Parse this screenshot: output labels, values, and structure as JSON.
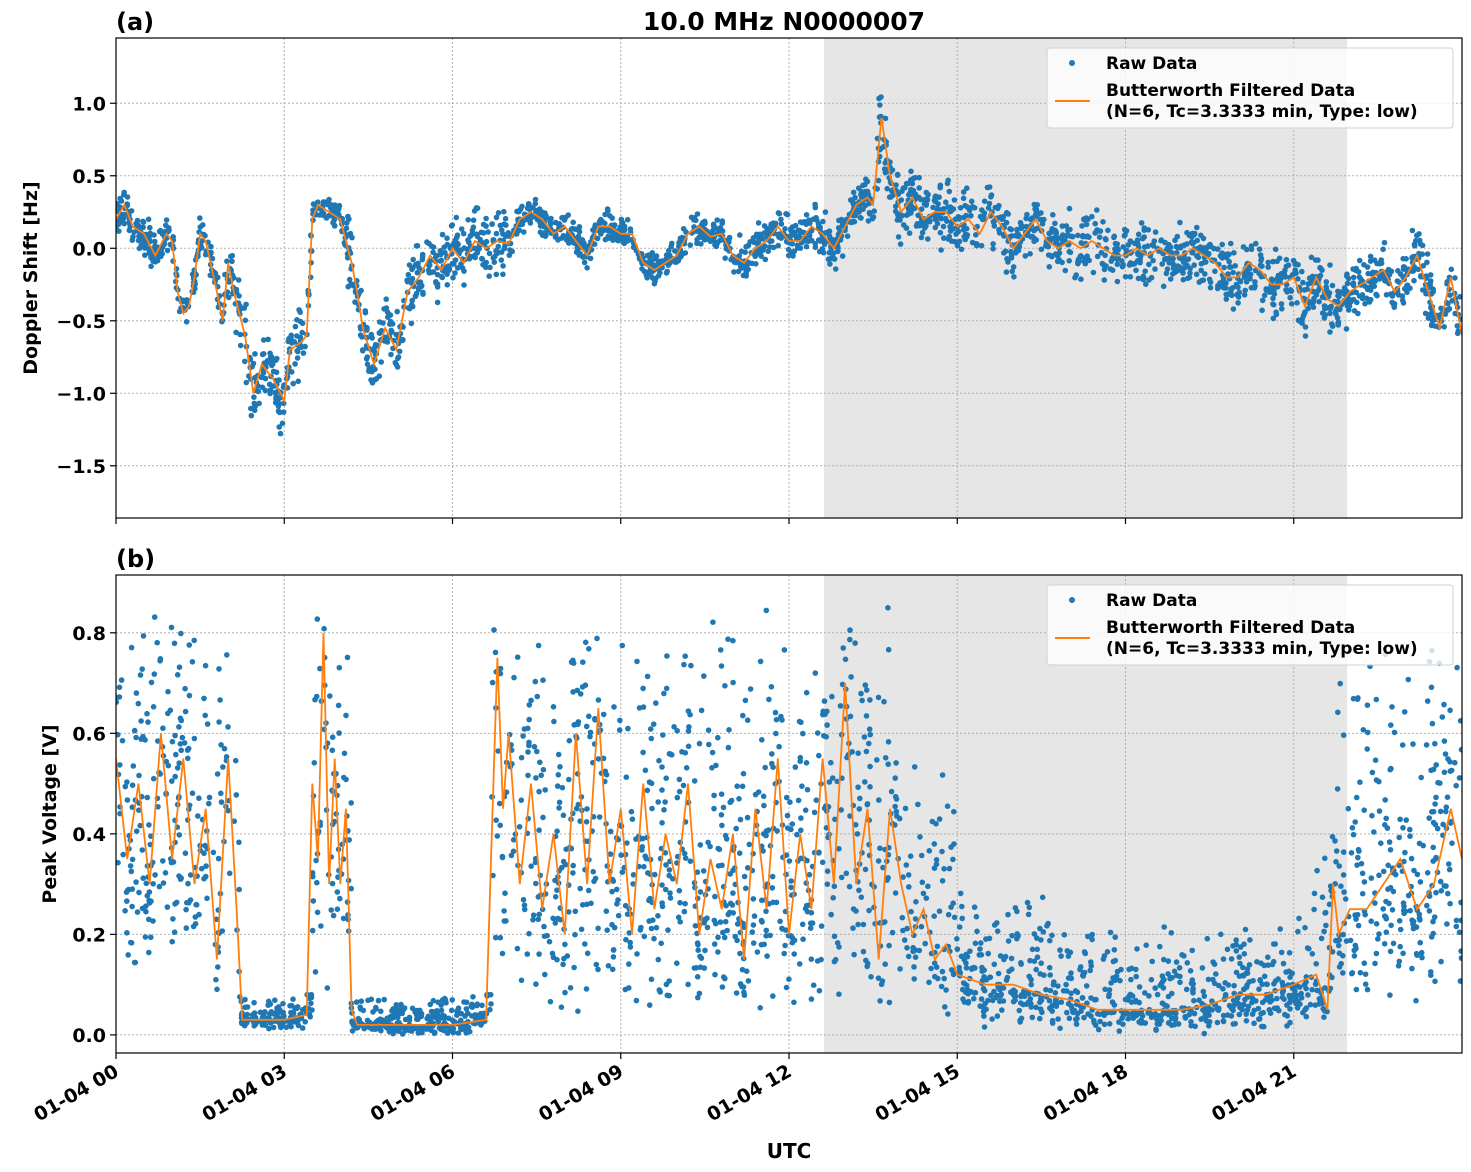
{
  "figure": {
    "title": "10.0 MHz N0000007",
    "xlabel": "UTC",
    "x_tick_labels": [
      "01-04 00",
      "01-04 03",
      "01-04 06",
      "01-04 09",
      "01-04 12",
      "01-04 15",
      "01-04 18",
      "01-04 21"
    ]
  },
  "chart_data": [
    {
      "type": "scatter+line",
      "panel_label": "(a)",
      "ylabel": "Doppler Shift [Hz]",
      "x_unit": "hours UTC on 01-04",
      "xlim": [
        0,
        24
      ],
      "ylim": [
        -1.86,
        1.45
      ],
      "y_ticks": [
        1.0,
        0.5,
        0.0,
        -0.5,
        -1.0,
        -1.5
      ],
      "y_tick_labels": [
        "1.0",
        "0.5",
        "0.0",
        "−0.5",
        "−1.0",
        "−1.5"
      ],
      "grid": true,
      "shaded_interval": [
        12.625,
        21.95
      ],
      "legend": {
        "placement": "top-right",
        "entries": [
          "Raw Data",
          "Butterworth Filtered Data",
          "(N=6, Tc=3.3333 min, Type: low)"
        ]
      },
      "colors": {
        "raw": "#1f77b4",
        "filtered": "#ff7f0e",
        "shade": "#e6e6e6"
      },
      "filtered": {
        "x": [
          0,
          0.15,
          0.3,
          0.5,
          0.7,
          0.9,
          1.0,
          1.1,
          1.2,
          1.3,
          1.4,
          1.5,
          1.6,
          1.8,
          1.9,
          2.0,
          2.1,
          2.3,
          2.45,
          2.6,
          2.8,
          3.0,
          3.1,
          3.3,
          3.4,
          3.5,
          3.6,
          3.8,
          4.0,
          4.2,
          4.3,
          4.4,
          4.6,
          4.8,
          5.0,
          5.2,
          5.4,
          5.6,
          5.8,
          6.0,
          6.2,
          6.4,
          6.6,
          6.8,
          7.0,
          7.2,
          7.4,
          7.6,
          7.8,
          8.0,
          8.2,
          8.4,
          8.6,
          8.8,
          9.0,
          9.2,
          9.4,
          9.6,
          9.8,
          10.0,
          10.2,
          10.4,
          10.6,
          10.8,
          11.0,
          11.2,
          11.4,
          11.6,
          11.8,
          12.0,
          12.2,
          12.4,
          12.6,
          12.8,
          13.0,
          13.2,
          13.4,
          13.5,
          13.65,
          13.8,
          14.0,
          14.2,
          14.4,
          14.6,
          14.8,
          15.0,
          15.2,
          15.4,
          15.6,
          15.8,
          16.0,
          16.2,
          16.4,
          16.6,
          16.8,
          17.0,
          17.2,
          17.4,
          17.6,
          17.8,
          18.0,
          18.2,
          18.4,
          18.6,
          18.8,
          19.0,
          19.2,
          19.4,
          19.6,
          19.8,
          20.0,
          20.2,
          20.4,
          20.6,
          20.8,
          21.0,
          21.2,
          21.4,
          21.6,
          21.8,
          22.0,
          22.2,
          22.4,
          22.6,
          22.8,
          23.0,
          23.2,
          23.4,
          23.6,
          23.8,
          24.0
        ],
        "y": [
          0.2,
          0.3,
          0.15,
          0.1,
          -0.05,
          0.1,
          0.05,
          -0.3,
          -0.45,
          -0.4,
          -0.2,
          0.1,
          0.05,
          -0.3,
          -0.5,
          -0.1,
          -0.3,
          -0.6,
          -1.0,
          -0.8,
          -0.9,
          -1.05,
          -0.7,
          -0.65,
          -0.6,
          0.2,
          0.3,
          0.25,
          0.2,
          -0.1,
          -0.3,
          -0.55,
          -0.8,
          -0.55,
          -0.7,
          -0.3,
          -0.2,
          -0.05,
          -0.15,
          0.0,
          -0.1,
          0.05,
          0.0,
          0.05,
          0.03,
          0.2,
          0.25,
          0.2,
          0.1,
          0.15,
          0.05,
          -0.05,
          0.15,
          0.15,
          0.1,
          0.1,
          -0.1,
          -0.15,
          -0.1,
          -0.05,
          0.1,
          0.15,
          0.08,
          0.1,
          -0.05,
          -0.1,
          0.0,
          0.05,
          0.15,
          0.05,
          0.05,
          0.15,
          0.1,
          0.0,
          0.15,
          0.3,
          0.35,
          0.3,
          0.9,
          0.5,
          0.25,
          0.35,
          0.2,
          0.25,
          0.25,
          0.15,
          0.2,
          0.1,
          0.25,
          0.15,
          0.0,
          0.1,
          0.2,
          0.05,
          0.0,
          0.05,
          0.0,
          0.05,
          0.0,
          -0.05,
          -0.05,
          0.0,
          -0.05,
          0.0,
          -0.05,
          -0.05,
          0.0,
          -0.05,
          -0.1,
          -0.2,
          -0.2,
          -0.1,
          -0.15,
          -0.25,
          -0.25,
          -0.2,
          -0.4,
          -0.2,
          -0.35,
          -0.4,
          -0.3,
          -0.25,
          -0.2,
          -0.15,
          -0.3,
          -0.2,
          -0.05,
          -0.3,
          -0.55,
          -0.2,
          -0.6
        ]
      },
      "raw_spread": [
        {
          "from": 0,
          "to": 2,
          "halfwidth": 0.2
        },
        {
          "from": 2,
          "to": 3.5,
          "halfwidth": 0.35
        },
        {
          "from": 3.5,
          "to": 4.1,
          "halfwidth": 0.12
        },
        {
          "from": 4.1,
          "to": 5.2,
          "halfwidth": 0.35
        },
        {
          "from": 5.2,
          "to": 7,
          "halfwidth": 0.32
        },
        {
          "from": 7,
          "to": 11,
          "halfwidth": 0.15
        },
        {
          "from": 11,
          "to": 13.5,
          "halfwidth": 0.2
        },
        {
          "from": 13.5,
          "to": 14,
          "halfwidth": 0.4
        },
        {
          "from": 14,
          "to": 16,
          "halfwidth": 0.3
        },
        {
          "from": 16,
          "to": 24,
          "halfwidth": 0.3
        }
      ]
    },
    {
      "type": "scatter+line",
      "panel_label": "(b)",
      "ylabel": "Peak Voltage [V]",
      "x_unit": "hours UTC on 01-04",
      "xlim": [
        0,
        24
      ],
      "ylim": [
        -0.036,
        0.915
      ],
      "y_ticks": [
        0.8,
        0.6,
        0.4,
        0.2,
        0.0
      ],
      "y_tick_labels": [
        "0.8",
        "0.6",
        "0.4",
        "0.2",
        "0.0"
      ],
      "grid": true,
      "shaded_interval": [
        12.625,
        21.95
      ],
      "legend": {
        "placement": "top-right",
        "entries": [
          "Raw Data",
          "Butterworth Filtered Data",
          "(N=6, Tc=3.3333 min, Type: low)"
        ]
      },
      "colors": {
        "raw": "#1f77b4",
        "filtered": "#ff7f0e",
        "shade": "#e6e6e6"
      },
      "filtered": {
        "x": [
          0,
          0.2,
          0.4,
          0.6,
          0.8,
          1.0,
          1.2,
          1.4,
          1.6,
          1.8,
          2.0,
          2.15,
          2.25,
          2.5,
          3.0,
          3.4,
          3.5,
          3.6,
          3.7,
          3.8,
          3.9,
          4.0,
          4.1,
          4.2,
          4.3,
          5,
          6,
          6.6,
          6.7,
          6.8,
          6.9,
          7.0,
          7.2,
          7.4,
          7.6,
          7.8,
          8.0,
          8.2,
          8.4,
          8.6,
          8.8,
          9.0,
          9.2,
          9.4,
          9.6,
          9.8,
          10.0,
          10.2,
          10.4,
          10.6,
          10.8,
          11.0,
          11.2,
          11.4,
          11.6,
          11.8,
          12.0,
          12.2,
          12.4,
          12.6,
          12.8,
          13.0,
          13.2,
          13.4,
          13.6,
          13.8,
          14.0,
          14.2,
          14.4,
          14.6,
          14.8,
          15.0,
          15.5,
          16.0,
          16.5,
          17.0,
          17.5,
          18.0,
          18.5,
          19.0,
          19.5,
          20.0,
          20.5,
          21.0,
          21.4,
          21.6,
          21.7,
          21.8,
          22.0,
          22.3,
          22.6,
          22.9,
          23.2,
          23.5,
          23.8,
          24.0
        ],
        "y": [
          0.55,
          0.35,
          0.5,
          0.3,
          0.6,
          0.35,
          0.55,
          0.3,
          0.45,
          0.15,
          0.55,
          0.25,
          0.03,
          0.03,
          0.03,
          0.04,
          0.5,
          0.35,
          0.8,
          0.3,
          0.55,
          0.3,
          0.45,
          0.05,
          0.02,
          0.02,
          0.02,
          0.03,
          0.4,
          0.75,
          0.45,
          0.6,
          0.3,
          0.5,
          0.25,
          0.4,
          0.2,
          0.6,
          0.3,
          0.65,
          0.3,
          0.45,
          0.2,
          0.5,
          0.25,
          0.4,
          0.3,
          0.5,
          0.2,
          0.35,
          0.25,
          0.4,
          0.15,
          0.45,
          0.25,
          0.55,
          0.2,
          0.4,
          0.25,
          0.55,
          0.3,
          0.7,
          0.3,
          0.45,
          0.15,
          0.45,
          0.3,
          0.2,
          0.25,
          0.15,
          0.18,
          0.12,
          0.1,
          0.1,
          0.08,
          0.07,
          0.05,
          0.05,
          0.05,
          0.05,
          0.06,
          0.08,
          0.08,
          0.1,
          0.12,
          0.05,
          0.3,
          0.2,
          0.25,
          0.25,
          0.3,
          0.35,
          0.25,
          0.3,
          0.45,
          0.35
        ]
      },
      "raw_range": [
        {
          "from": 0,
          "to": 2.2,
          "low": 0.08,
          "high": 0.85
        },
        {
          "from": 2.2,
          "to": 3.5,
          "low": 0.01,
          "high": 0.08
        },
        {
          "from": 3.5,
          "to": 4.2,
          "low": 0.05,
          "high": 0.85
        },
        {
          "from": 4.2,
          "to": 6.7,
          "low": 0.0,
          "high": 0.08
        },
        {
          "from": 6.7,
          "to": 13.8,
          "low": 0.03,
          "high": 0.86
        },
        {
          "from": 13.8,
          "to": 15,
          "low": 0.03,
          "high": 0.55
        },
        {
          "from": 15,
          "to": 17,
          "low": 0.01,
          "high": 0.3
        },
        {
          "from": 17,
          "to": 21,
          "low": 0.0,
          "high": 0.22
        },
        {
          "from": 21,
          "to": 21.7,
          "low": 0.02,
          "high": 0.45
        },
        {
          "from": 21.7,
          "to": 24,
          "low": 0.05,
          "high": 0.8
        }
      ]
    }
  ]
}
